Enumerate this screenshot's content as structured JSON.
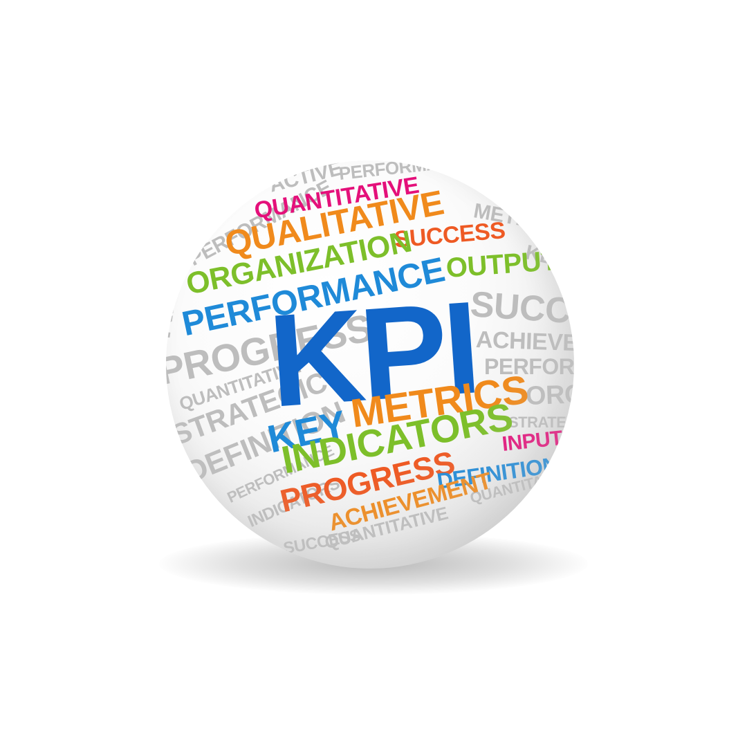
{
  "background_words": {
    "w1": "PERFORMANCE",
    "w2": "ACTIVE",
    "w3": "METRICS",
    "w4": "SUCCESS",
    "w5": "ACHIEVEMENT",
    "w6": "PERFORMANCE",
    "w7": "ORGANIZATION",
    "w8": "STRATEGIC",
    "w9": "KEY",
    "w10": "PROGRESS",
    "w11": "QUANTITATIVE",
    "w12": "STRATEGIC",
    "w13": "DEFINITION",
    "w14": "PERFORMANCE",
    "w15": "INDICATORS",
    "w16": "QUANTITATIVE",
    "w17": "PERFORMANCE",
    "w18": "QUANTITATIVE",
    "w19": "KEY",
    "w20": "SUCCESS"
  },
  "words": {
    "quantitative": "QUANTITATIVE",
    "qualitative": "QUALITATIVE",
    "success": "SUCCESS",
    "organization": "ORGANIZATION",
    "output": "OUTPUT",
    "performance": "PERFORMANCE",
    "kpi": "KPI",
    "key": "KEY",
    "metrics": "METRICS",
    "indicators": "INDICATORS",
    "input": "INPUT",
    "progress": "PROGRESS",
    "definition": "DEFINITION",
    "achievement": "ACHIEVEMENT"
  },
  "colors": {
    "pink": "#e4107a",
    "orange": "#f08a1c",
    "green": "#7dbf2a",
    "blue": "#1f8ad8",
    "dark_blue": "#1266c9",
    "red_orange": "#ee5a24",
    "grey": "#bdbdbd"
  }
}
